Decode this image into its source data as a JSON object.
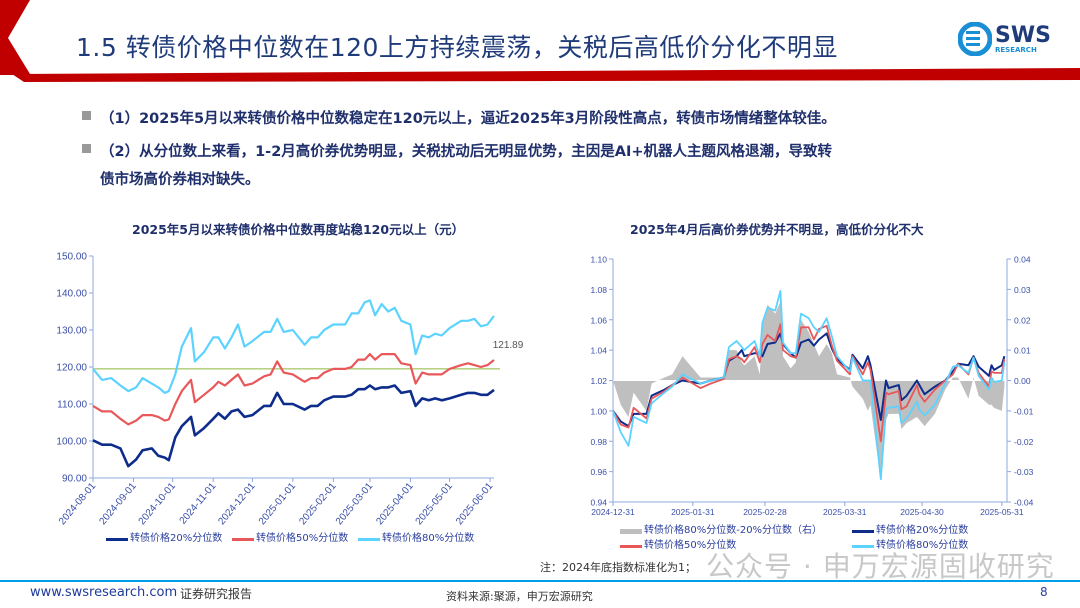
{
  "header": {
    "title": "1.5 转债价格中位数在120上方持续震荡，关税后高低价分化不明显",
    "logo_text": "SWS",
    "logo_sub": "RESEARCH",
    "accent_color": "#C00000",
    "title_color": "#1F3B7A"
  },
  "bullets": [
    {
      "text": "（1）2025年5月以来转债价格中位数稳定在120元以上，逼近2025年3月阶段性高点，转债市场情绪整体较佳。"
    },
    {
      "line1": "（2）从分位数上来看，1-2月高价券优势明显，关税扰动后无明显优势，主因是AI+机器人主题风格退潮，导致转",
      "line2": "债市场高价券相对缺失。"
    }
  ],
  "chart_data": [
    {
      "type": "line",
      "title": "2025年5月以来转债价格中位数再度站稳120元以上（元）",
      "ylim": [
        90,
        150
      ],
      "yticks": [
        "90.00",
        "100.00",
        "110.00",
        "120.00",
        "130.00",
        "140.00",
        "150.00"
      ],
      "xticks": [
        "2024-08-01",
        "2024-09-01",
        "2024-10-01",
        "2024-11-01",
        "2024-12-01",
        "2025-01-01",
        "2025-02-01",
        "2025-03-01",
        "2025-04-01",
        "2025-05-01",
        "2025-06-01"
      ],
      "xlim": [
        "2024-08-01",
        "2025-06-04"
      ],
      "reference_line": 119.5,
      "annotation": "121.89",
      "grid": false,
      "legend_position": "bottom",
      "x": [
        "2024-08-01",
        "2024-08-08",
        "2024-08-15",
        "2024-08-22",
        "2024-08-28",
        "2024-09-03",
        "2024-09-08",
        "2024-09-15",
        "2024-09-20",
        "2024-09-25",
        "2024-09-28",
        "2024-10-03",
        "2024-10-08",
        "2024-10-15",
        "2024-10-18",
        "2024-10-25",
        "2024-11-01",
        "2024-11-05",
        "2024-11-10",
        "2024-11-15",
        "2024-11-20",
        "2024-11-25",
        "2024-12-01",
        "2024-12-10",
        "2024-12-15",
        "2024-12-20",
        "2024-12-25",
        "2025-01-01",
        "2025-01-10",
        "2025-01-15",
        "2025-01-20",
        "2025-01-25",
        "2025-02-01",
        "2025-02-10",
        "2025-02-15",
        "2025-02-20",
        "2025-02-25",
        "2025-03-01",
        "2025-03-05",
        "2025-03-10",
        "2025-03-15",
        "2025-03-20",
        "2025-03-25",
        "2025-04-01",
        "2025-04-05",
        "2025-04-10",
        "2025-04-15",
        "2025-04-20",
        "2025-04-25",
        "2025-05-01",
        "2025-05-10",
        "2025-05-15",
        "2025-05-20",
        "2025-05-25",
        "2025-05-30",
        "2025-06-04"
      ],
      "series": [
        {
          "name": "转债价格20%分位数",
          "color": "#0D2C8C",
          "values": [
            100.2,
            99,
            99,
            98,
            93.2,
            95,
            97.5,
            98,
            96,
            95.5,
            94.8,
            101,
            104,
            106.5,
            101.5,
            103.5,
            106,
            107.5,
            106,
            108,
            108.5,
            106.5,
            107,
            109.5,
            109.5,
            113,
            110,
            110,
            108.5,
            109.5,
            109.5,
            111,
            112,
            112,
            112.5,
            114,
            114,
            115,
            114,
            114.5,
            114.5,
            115,
            113,
            113.5,
            109.5,
            111.5,
            111,
            111.5,
            111,
            111.5,
            112.5,
            113,
            113,
            112.5,
            112.5,
            113.8
          ]
        },
        {
          "name": "转债价格50%分位数",
          "color": "#E8585A",
          "values": [
            109.5,
            108,
            108,
            106,
            104.5,
            105.5,
            107,
            107,
            106.5,
            105.5,
            105.8,
            110,
            113.5,
            116.5,
            110.5,
            112.5,
            114.5,
            116,
            115,
            116.5,
            118,
            115,
            115.5,
            117.5,
            118,
            121.5,
            118.5,
            118,
            116,
            117,
            117,
            118.5,
            119.5,
            119.5,
            120,
            122,
            122,
            123.5,
            122,
            123.5,
            123.5,
            123.5,
            121,
            120.5,
            115.5,
            118.5,
            118,
            118,
            118,
            119.5,
            120.5,
            121,
            120.5,
            120,
            120.5,
            121.89
          ]
        },
        {
          "name": "转债价格80%分位数",
          "color": "#5CD3FF",
          "values": [
            119.5,
            116.5,
            117,
            115,
            113.5,
            114.5,
            117,
            115.5,
            114.5,
            113,
            113.5,
            118,
            125.5,
            130.5,
            121.5,
            124,
            128,
            128,
            125,
            128,
            131.5,
            125.5,
            127,
            129.5,
            129.5,
            133,
            129.5,
            130,
            126,
            128,
            128,
            130,
            131.5,
            131.5,
            134.5,
            134.5,
            137.5,
            138,
            134,
            137,
            135,
            136,
            132.5,
            131.5,
            123.5,
            128.5,
            128,
            129,
            128.5,
            130.5,
            132.5,
            132.5,
            133,
            131,
            131.5,
            133.8
          ]
        }
      ]
    },
    {
      "type": "line",
      "title": "2025年4月后高价券优势并不明显，高低价分化不大",
      "ylim": [
        0.94,
        1.1
      ],
      "y2lim": [
        -0.04,
        0.04
      ],
      "yticks": [
        "0.94",
        "0.96",
        "0.98",
        "1.00",
        "1.02",
        "1.04",
        "1.06",
        "1.08",
        "1.10"
      ],
      "y2ticks": [
        "-0.04",
        "-0.03",
        "-0.02",
        "-0.01",
        "0.00",
        "0.01",
        "0.02",
        "0.03",
        "0.04"
      ],
      "xticks": [
        "2024-12-31",
        "2025-01-31",
        "2025-02-28",
        "2025-03-31",
        "2025-04-30",
        "2025-05-31"
      ],
      "xlim": [
        "2024-12-31",
        "2025-06-02"
      ],
      "grid": false,
      "legend_position": "bottom",
      "note": "注：2024年底指数标准化为1；",
      "x": [
        "2024-12-31",
        "2025-01-03",
        "2025-01-06",
        "2025-01-08",
        "2025-01-13",
        "2025-01-15",
        "2025-01-20",
        "2025-01-23",
        "2025-01-27",
        "2025-02-03",
        "2025-02-07",
        "2025-02-12",
        "2025-02-14",
        "2025-02-17",
        "2025-02-19",
        "2025-02-20",
        "2025-02-24",
        "2025-02-26",
        "2025-02-27",
        "2025-03-01",
        "2025-03-04",
        "2025-03-06",
        "2025-03-07",
        "2025-03-10",
        "2025-03-12",
        "2025-03-14",
        "2025-03-17",
        "2025-03-19",
        "2025-03-21",
        "2025-03-24",
        "2025-03-26",
        "2025-03-28",
        "2025-04-02",
        "2025-04-03",
        "2025-04-07",
        "2025-04-09",
        "2025-04-10",
        "2025-04-14",
        "2025-04-16",
        "2025-04-17",
        "2025-04-21",
        "2025-04-22",
        "2025-04-24",
        "2025-04-28",
        "2025-04-29",
        "2025-05-01",
        "2025-05-05",
        "2025-05-09",
        "2025-05-12",
        "2025-05-14",
        "2025-05-18",
        "2025-05-20",
        "2025-05-22",
        "2025-05-26",
        "2025-05-27",
        "2025-05-28",
        "2025-05-31",
        "2025-06-01"
      ],
      "series": [
        {
          "name": "转债价格80%分位数-20%分位数（右）",
          "color": "#BFBFBF",
          "axis": "right",
          "type": "area",
          "values": [
            0,
            -0.008,
            -0.012,
            -0.004,
            -0.01,
            -0.001,
            0.001,
            0.002,
            0.008,
            0.001,
            0.001,
            0.001,
            0.01,
            0.01,
            0.006,
            0.005,
            0.008,
            0.002,
            0.018,
            0.025,
            0.022,
            0.026,
            0.008,
            0.004,
            0.006,
            0.02,
            0.016,
            0.012,
            0.008,
            0.012,
            0.009,
            0.002,
            0.001,
            -0.002,
            -0.006,
            -0.01,
            -0.008,
            -0.033,
            -0.013,
            -0.011,
            -0.011,
            -0.016,
            -0.014,
            -0.012,
            -0.013,
            -0.015,
            -0.011,
            -0.003,
            0.001,
            0.001,
            -0.006,
            0.001,
            -0.005,
            -0.008,
            -0.008,
            -0.009,
            -0.01,
            -0.002
          ]
        },
        {
          "name": "转债价格20%分位数",
          "color": "#0D2C8C",
          "values": [
            1.0,
            0.993,
            0.99,
            0.998,
            0.998,
            1.01,
            1.014,
            1.017,
            1.02,
            1.018,
            1.02,
            1.022,
            1.033,
            1.036,
            1.04,
            1.036,
            1.038,
            1.038,
            1.036,
            1.044,
            1.045,
            1.051,
            1.044,
            1.038,
            1.035,
            1.045,
            1.047,
            1.043,
            1.047,
            1.051,
            1.041,
            1.034,
            1.027,
            1.037,
            1.028,
            1.036,
            1.03,
            0.994,
            1.02,
            1.015,
            1.017,
            1.007,
            1.01,
            1.02,
            1.017,
            1.011,
            1.016,
            1.02,
            1.026,
            1.031,
            1.03,
            1.036,
            1.029,
            1.023,
            1.03,
            1.027,
            1.03,
            1.036
          ]
        },
        {
          "name": "转债价格50%分位数",
          "color": "#E8585A",
          "values": [
            1.0,
            0.991,
            0.989,
            1.002,
            0.995,
            1.008,
            1.013,
            1.017,
            1.022,
            1.015,
            1.018,
            1.021,
            1.034,
            1.036,
            1.034,
            1.032,
            1.042,
            1.032,
            1.044,
            1.05,
            1.046,
            1.057,
            1.04,
            1.036,
            1.035,
            1.055,
            1.055,
            1.047,
            1.054,
            1.056,
            1.043,
            1.033,
            1.024,
            1.036,
            1.024,
            1.032,
            1.027,
            0.98,
            1.012,
            1.011,
            1.013,
            1.001,
            1.003,
            1.017,
            1.011,
            1.006,
            1.014,
            1.02,
            1.024,
            1.031,
            1.024,
            1.035,
            1.025,
            1.016,
            1.026,
            1.025,
            1.025,
            1.034
          ]
        },
        {
          "name": "转债价格80%分位数",
          "color": "#5CD3FF",
          "values": [
            1.0,
            0.986,
            0.977,
            0.996,
            0.992,
            1.005,
            1.012,
            1.016,
            1.024,
            1.018,
            1.02,
            1.022,
            1.042,
            1.046,
            1.042,
            1.04,
            1.046,
            1.036,
            1.058,
            1.068,
            1.066,
            1.079,
            1.045,
            1.038,
            1.038,
            1.064,
            1.061,
            1.055,
            1.052,
            1.061,
            1.049,
            1.036,
            1.026,
            1.035,
            1.02,
            1.02,
            1.02,
            0.955,
            1.001,
            1.002,
            1.003,
            0.992,
            0.995,
            1.006,
            1.001,
            0.997,
            1.004,
            1.018,
            1.029,
            1.03,
            1.025,
            1.035,
            1.023,
            1.014,
            1.022,
            1.019,
            1.02,
            1.032
          ]
        }
      ]
    }
  ],
  "watermark": "公众号 · 申万宏源固收研究",
  "footer": {
    "website": "www.swsresearch.com",
    "report_type": "证券研究报告",
    "source": "资料来源:聚源，申万宏源研究",
    "page_number": "8",
    "line_color": "#00A0E9"
  }
}
